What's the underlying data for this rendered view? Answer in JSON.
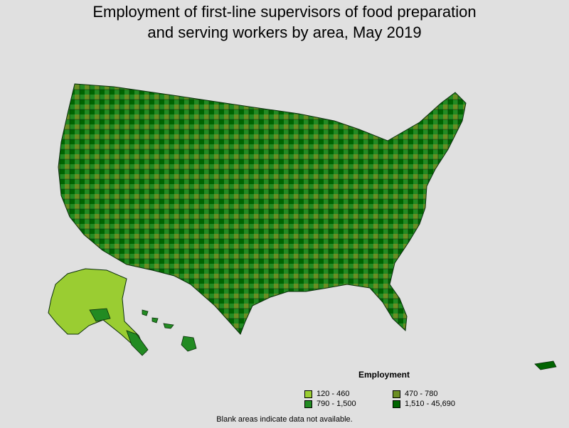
{
  "title": {
    "line1": "Employment of first-line supervisors of food preparation",
    "line2": "and serving workers by area, May 2019"
  },
  "legend": {
    "title": "Employment",
    "items": [
      {
        "label": "120 - 460",
        "color": "#9acd32"
      },
      {
        "label": "470 - 780",
        "color": "#6b8e23"
      },
      {
        "label": "790 - 1,500",
        "color": "#228b22"
      },
      {
        "label": "1,510 - 45,690",
        "color": "#006400"
      }
    ]
  },
  "note": "Blank areas indicate data not available."
}
